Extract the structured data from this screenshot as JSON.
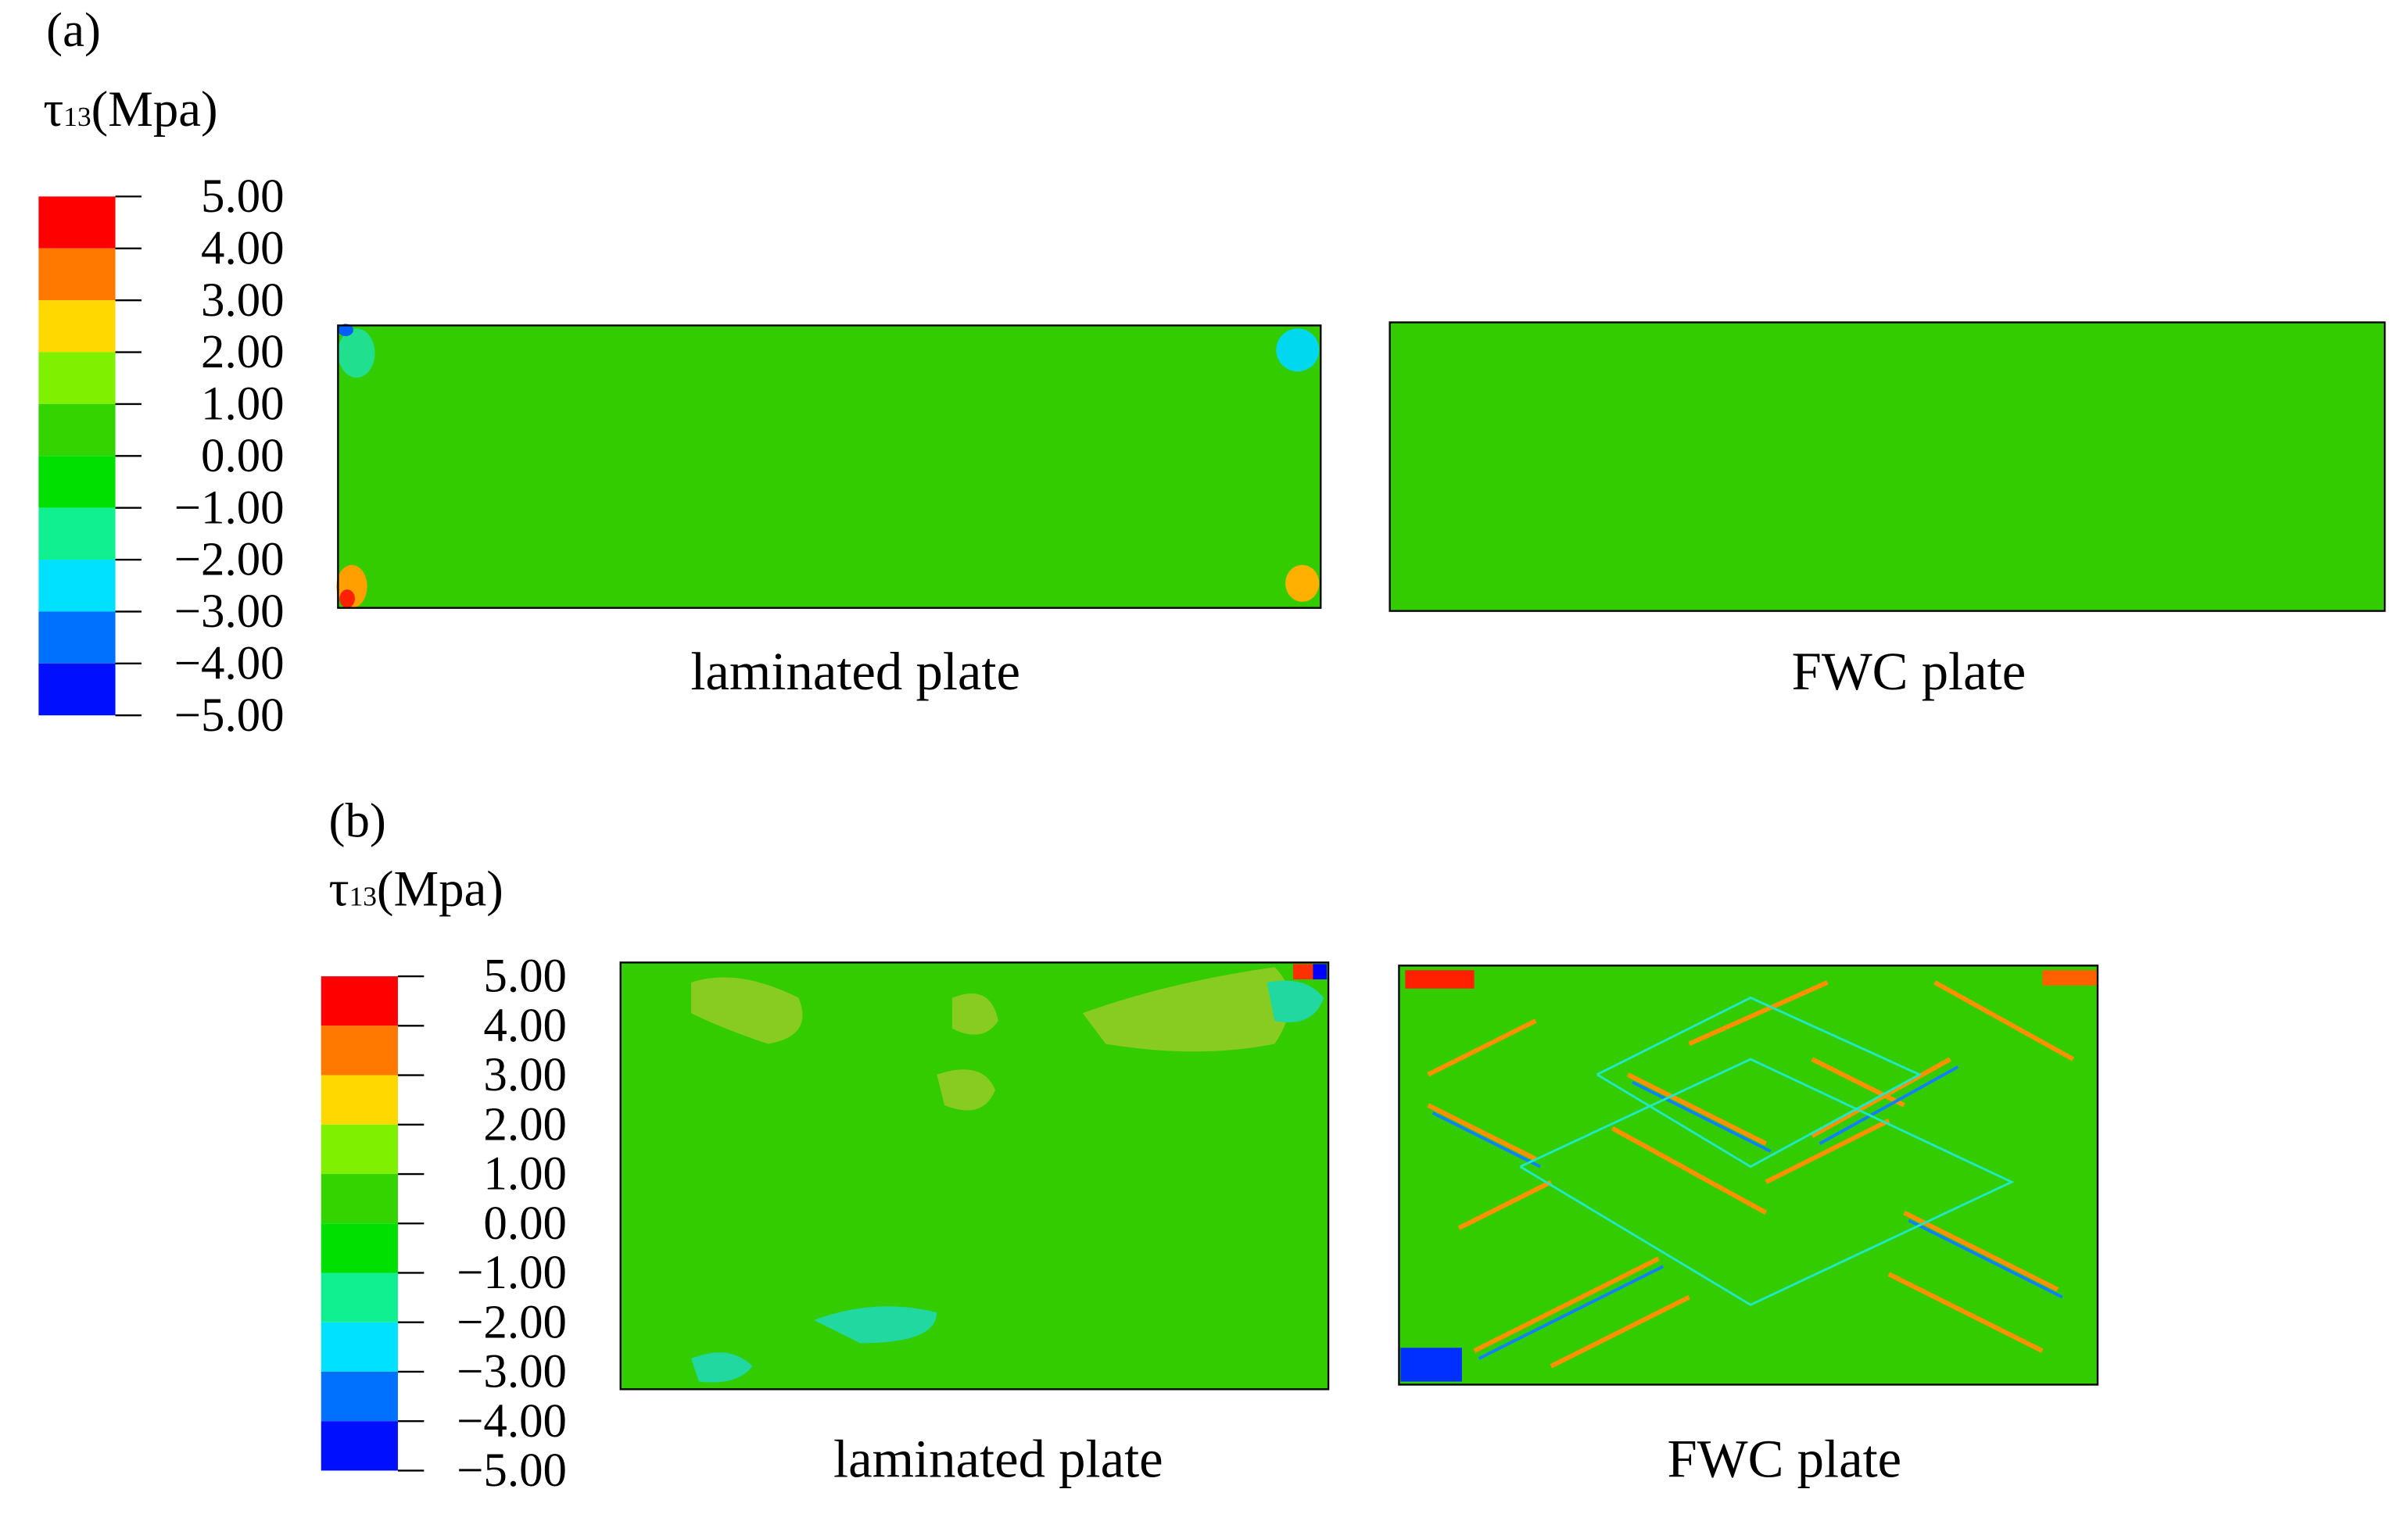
{
  "panels": [
    {
      "label": "(a)",
      "legend": {
        "title": {
          "symbol": "τ",
          "subscript": "13",
          "unit": "(Mpa)"
        },
        "ticks": [
          "5.00",
          "4.00",
          "3.00",
          "2.00",
          "1.00",
          "0.00",
          "−1.00",
          "−2.00",
          "−3.00",
          "−4.00",
          "−5.00"
        ]
      },
      "plates": [
        {
          "caption": "laminated plate"
        },
        {
          "caption": "FWC plate"
        }
      ]
    },
    {
      "label": "(b)",
      "legend": {
        "title": {
          "symbol": "τ",
          "subscript": "13",
          "unit": "(Mpa)"
        },
        "ticks": [
          "5.00",
          "4.00",
          "3.00",
          "2.00",
          "1.00",
          "0.00",
          "−1.00",
          "−2.00",
          "−3.00",
          "−4.00",
          "−5.00"
        ]
      },
      "plates": [
        {
          "caption": "laminated plate"
        },
        {
          "caption": "FWC plate"
        }
      ]
    }
  ]
}
